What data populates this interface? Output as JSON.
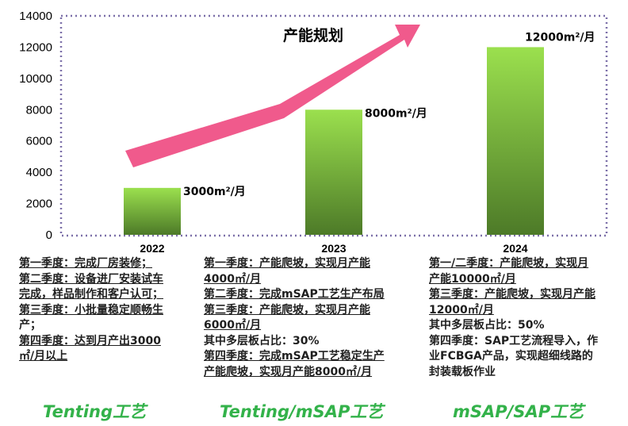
{
  "chart_data": {
    "type": "bar",
    "title": "产能规划",
    "categories": [
      "2022",
      "2023",
      "2024"
    ],
    "values": [
      3000,
      8000,
      12000
    ],
    "data_labels": [
      "3000m²/月",
      "8000m²/月",
      "12000m²/月"
    ],
    "ylim": [
      0,
      14000
    ],
    "yticks": [
      0,
      2000,
      4000,
      6000,
      8000,
      10000,
      12000,
      14000
    ],
    "xlabel": "",
    "ylabel": "",
    "grid": false,
    "colors": {
      "bar_top": "#9be04e",
      "bar_bottom": "#4d7a28",
      "arrow": "#f05a8c",
      "frame": "#7b6fa8"
    }
  },
  "descriptions": [
    {
      "year": "2022",
      "lines": [
        "第一季度：完成厂房装修；",
        "第二季度：设备进厂安装试车",
        "完成，样品制作和客户认可；",
        "第三季度：小批量稳定顺畅生",
        "产；",
        "第四季度：达到月产出3000",
        "㎡/月以上"
      ]
    },
    {
      "year": "2023",
      "lines": [
        "第一季度：产能爬坡，实现月产能",
        "4000㎡/月",
        "第二季度：完成mSAP工艺生产布局",
        "第三季度：产能爬坡，实现月产能",
        "6000㎡/月",
        "其中多层板占比：30%",
        "第四季度：完成mSAP工艺稳定生产",
        "产能爬坡，实现月产能8000㎡/月"
      ]
    },
    {
      "year": "2024",
      "lines": [
        "第一/二季度：产能爬坡，实现月",
        "产能10000㎡/月",
        "第三季度：产能爬坡，实现月产能",
        "12000㎡/月",
        "其中多层板占比：50%",
        "第四季度：SAP工艺流程导入，作",
        "业FCBGA产品，实现超细线路的",
        "封装载板作业"
      ]
    }
  ],
  "processes": [
    "Tenting工艺",
    "Tenting/mSAP工艺",
    "mSAP/SAP工艺"
  ]
}
